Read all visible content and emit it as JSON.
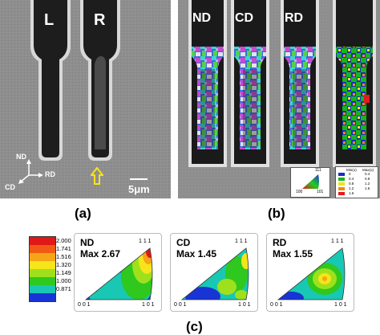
{
  "panel_a": {
    "left_label": "L",
    "right_label": "R",
    "axes": {
      "nd": "ND",
      "rd": "RD",
      "cd": "CD"
    },
    "scale_bar": "5μm",
    "caption": "(a)"
  },
  "panel_b": {
    "maps": [
      {
        "label": "ND"
      },
      {
        "label": "CD"
      },
      {
        "label": "RD"
      }
    ],
    "ipf_key": {
      "top": "111",
      "left": "100",
      "right": "101"
    },
    "mis_legend": {
      "header_left": "Min(o)",
      "header_right": "Max(o)",
      "rows": [
        {
          "color": "#1a2cc8",
          "min": "0",
          "max": "0.4"
        },
        {
          "color": "#19b31e",
          "min": "0.4",
          "max": "0.8"
        },
        {
          "color": "#f0e515",
          "min": "0.8",
          "max": "1.2"
        },
        {
          "color": "#f08a18",
          "min": "1.2",
          "max": "1.6"
        },
        {
          "color": "#e01c1c",
          "min": "1.6",
          "max": ""
        }
      ]
    },
    "caption": "(b)"
  },
  "panel_c": {
    "colorbar": {
      "values": [
        "2.000",
        "1.741",
        "1.516",
        "1.320",
        "1.149",
        "1.000",
        "0.871"
      ],
      "colors": [
        "#e01818",
        "#f05a14",
        "#f5a516",
        "#f5e51a",
        "#9fe01c",
        "#2ec81e",
        "#18c8b4",
        "#1834d4"
      ]
    },
    "pole_figures": [
      {
        "name": "ND",
        "max": "Max 2.67",
        "t": "1 1 1",
        "bl": "0 0 1",
        "br": "1 0 1"
      },
      {
        "name": "CD",
        "max": "Max 1.45",
        "t": "1 1 1",
        "bl": "0 0 1",
        "br": "1 0 1"
      },
      {
        "name": "RD",
        "max": "Max 1.55",
        "t": "1 1 1",
        "bl": "0 0 1",
        "br": "1 0 1"
      }
    ],
    "caption": "(c)"
  }
}
